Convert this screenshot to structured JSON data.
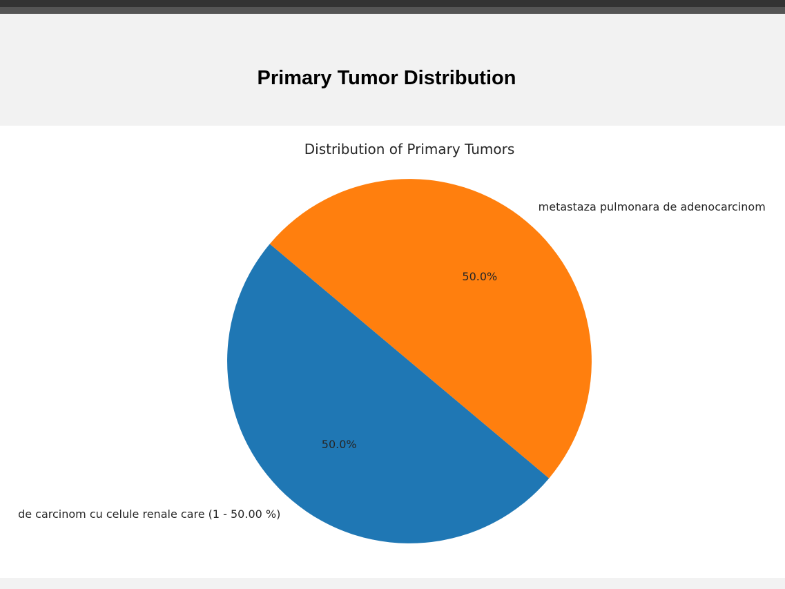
{
  "page": {
    "title": "Primary Tumor Distribution"
  },
  "chart_data": {
    "type": "pie",
    "title": "Distribution of Primary Tumors",
    "labels": [
      "de carcinom cu celule renale care (1 - 50.00 %)",
      "metastaza pulmonara de adenocarcinom"
    ],
    "values": [
      50.0,
      50.0
    ],
    "autopct_labels": [
      "50.0%",
      "50.0%"
    ],
    "colors": [
      "#1f77b4",
      "#ff7f0e"
    ],
    "start_angle_deg": 140
  }
}
